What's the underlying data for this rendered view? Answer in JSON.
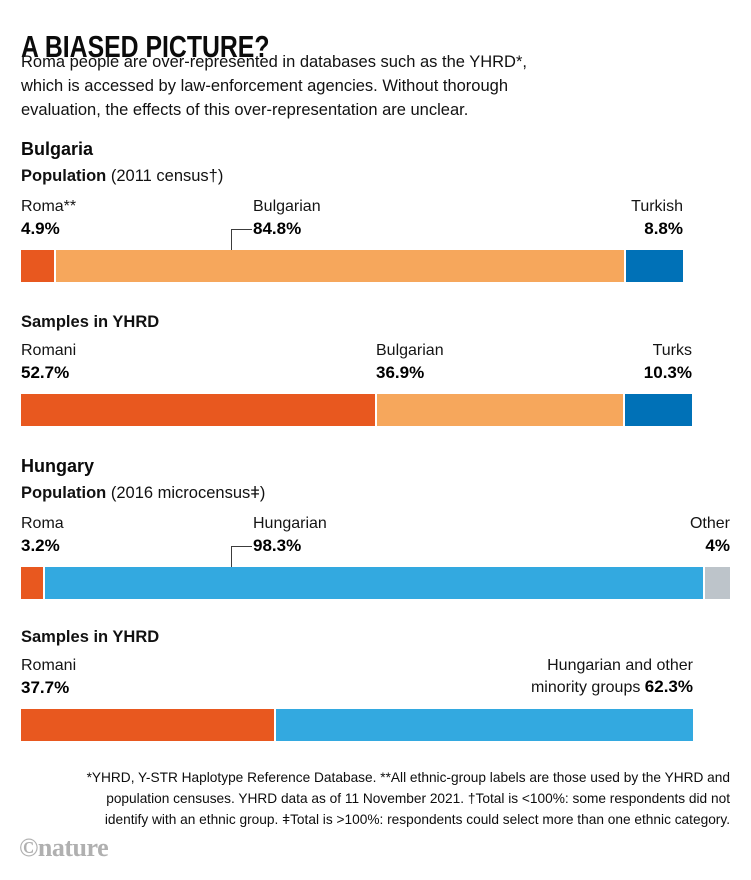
{
  "header": {
    "title": "A BIASED PICTURE?",
    "intro_lines": [
      "Roma people are over-represented in databases such as the YHRD*,",
      "which is accessed by law-enforcement agencies. Without thorough",
      "evaluation, the effects of this over-representation are unclear."
    ]
  },
  "chart_data": [
    {
      "type": "bar",
      "stacked": true,
      "orientation": "horizontal",
      "section": "Bulgaria",
      "title": "Population",
      "title_note": "(2011 census†)",
      "unit": "%",
      "axis_max": 100,
      "segments": [
        {
          "key": "roma",
          "label": "Roma**",
          "value": 4.9,
          "display": "4.9%",
          "color": "#e8581f"
        },
        {
          "key": "bulgarian",
          "label": "Bulgarian",
          "value": 84.8,
          "display": "84.8%",
          "color": "#f6a75c"
        },
        {
          "key": "turkish",
          "label": "Turkish",
          "value": 8.8,
          "display": "8.8%",
          "color": "#0071b7"
        }
      ]
    },
    {
      "type": "bar",
      "stacked": true,
      "orientation": "horizontal",
      "section": "Bulgaria",
      "title": "Samples in YHRD",
      "unit": "%",
      "axis_max": 100,
      "segments": [
        {
          "key": "romani",
          "label": "Romani",
          "value": 52.7,
          "display": "52.7%",
          "color": "#e8581f"
        },
        {
          "key": "bulgarian",
          "label": "Bulgarian",
          "value": 36.9,
          "display": "36.9%",
          "color": "#f6a75c"
        },
        {
          "key": "turks",
          "label": "Turks",
          "value": 10.3,
          "display": "10.3%",
          "color": "#0071b7"
        }
      ]
    },
    {
      "type": "bar",
      "stacked": true,
      "orientation": "horizontal",
      "section": "Hungary",
      "title": "Population",
      "title_note": "(2016 microcensusǂ)",
      "unit": "%",
      "axis_max": 100,
      "segments": [
        {
          "key": "roma",
          "label": "Roma",
          "value": 3.2,
          "display": "3.2%",
          "color": "#e8581f"
        },
        {
          "key": "hungarian",
          "label": "Hungarian",
          "value": 98.3,
          "display": "98.3%",
          "color": "#33a9e0"
        },
        {
          "key": "other",
          "label": "Other",
          "value": 4,
          "display": "4%",
          "color": "#bdc4ca"
        }
      ]
    },
    {
      "type": "bar",
      "stacked": true,
      "orientation": "horizontal",
      "section": "Hungary",
      "title": "Samples in YHRD",
      "unit": "%",
      "axis_max": 100,
      "segments": [
        {
          "key": "romani",
          "label": "Romani",
          "value": 37.7,
          "display": "37.7%",
          "color": "#e8581f"
        },
        {
          "key": "hungarian-other",
          "label": "Hungarian and other minority groups",
          "label_line1": "Hungarian and other",
          "label_line2": "minority groups ",
          "value": 62.3,
          "display": "62.3%",
          "color": "#33a9e0"
        }
      ]
    }
  ],
  "footnote_lines": [
    "*YHRD, Y-STR Haplotype Reference Database. **All ethnic-group labels are those used by the YHRD and",
    "population censuses. YHRD data as of 11 November 2021. †Total is <100%: some respondents did not",
    "identify with an ethnic group. ǂTotal is >100%: respondents could select more than one ethnic category."
  ],
  "logo": "©nature"
}
